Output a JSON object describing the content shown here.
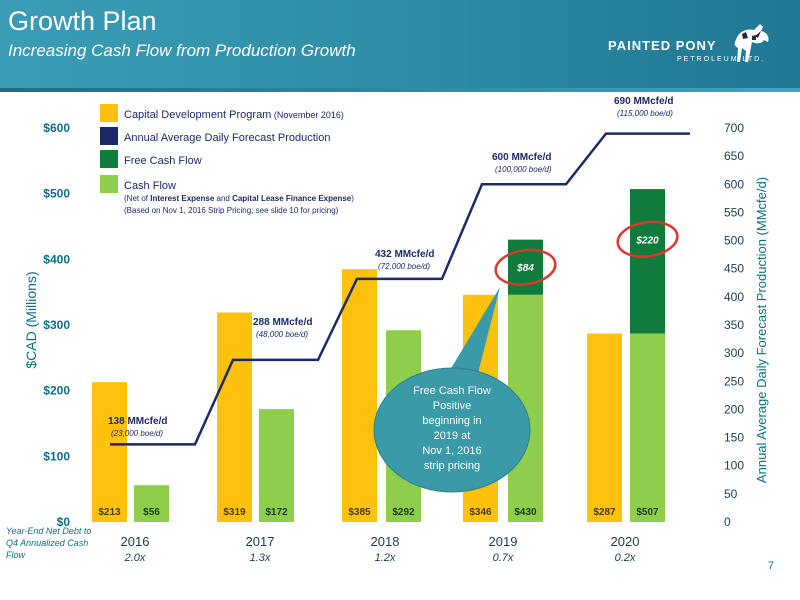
{
  "header": {
    "title": "Growth Plan",
    "subtitle": "Increasing Cash Flow from Production Growth"
  },
  "logo": {
    "name": "PAINTED PONY",
    "sub": "PETROLEUM LTD."
  },
  "footer": {
    "net_debt_label": "Year-End Net Debt to Q4 Annualized Cash Flow",
    "page_number": "7"
  },
  "colors": {
    "header": "#2f8fa9",
    "capital": "#fec20e",
    "production": "#1b2a68",
    "free_cash_flow": "#107b3b",
    "cash_flow": "#8fcd4c",
    "axis_text": "#0f6d8a",
    "callout": "#3a9aa8",
    "highlight_circle": "#e0362f"
  },
  "chart_data": {
    "type": "bar",
    "categories": [
      "2016",
      "2017",
      "2018",
      "2019",
      "2020"
    ],
    "y_left": {
      "label": "$CAD (Millions)",
      "range": [
        0,
        600
      ],
      "ticks": [
        "$0",
        "$100",
        "$200",
        "$300",
        "$400",
        "$500",
        "$600"
      ],
      "tick_values": [
        0,
        100,
        200,
        300,
        400,
        500,
        600
      ]
    },
    "y_right": {
      "label": "Annual Average Daily Forecast Production (MMcfe/d)",
      "range": [
        0,
        700
      ],
      "ticks": [
        "0",
        "50",
        "100",
        "150",
        "200",
        "250",
        "300",
        "350",
        "400",
        "450",
        "500",
        "550",
        "600",
        "650",
        "700"
      ],
      "tick_values": [
        0,
        50,
        100,
        150,
        200,
        250,
        300,
        350,
        400,
        450,
        500,
        550,
        600,
        650,
        700
      ]
    },
    "ratios": [
      "2.0x",
      "1.3x",
      "1.2x",
      "0.7x",
      "0.2x"
    ],
    "series": [
      {
        "name": "Capital Development Program",
        "values": [
          213,
          319,
          385,
          346,
          287
        ],
        "labels": [
          "$213",
          "$319",
          "$385",
          "$346",
          "$287"
        ]
      },
      {
        "name": "Cash Flow",
        "values": [
          56,
          172,
          292,
          430,
          507
        ],
        "labels": [
          "$56",
          "$172",
          "$292",
          "$430",
          "$507"
        ]
      },
      {
        "name": "Free Cash Flow",
        "values": [
          0,
          0,
          0,
          84,
          220
        ],
        "labels": [
          "",
          "",
          "",
          "$84",
          "$220"
        ]
      }
    ],
    "production": {
      "name": "Annual Average Daily Forecast Production",
      "values": [
        138,
        288,
        432,
        600,
        690
      ],
      "labels": [
        "138 MMcfe/d",
        "288 MMcfe/d",
        "432 MMcfe/d",
        "600 MMcfe/d",
        "690 MMcfe/d"
      ],
      "sublabels": [
        "(23,000 boe/d)",
        "(48,000 boe/d)",
        "(72,000 boe/d)",
        "(100,000 boe/d)",
        "(115,000 boe/d)"
      ]
    },
    "legend": {
      "placement": "top-left",
      "items": [
        {
          "label": "Capital Development Program",
          "suffix": "(November 2016)",
          "color": "#fec20e"
        },
        {
          "label": "Annual Average Daily Forecast Production",
          "suffix": "",
          "color": "#1b2a68"
        },
        {
          "label": "Free Cash Flow",
          "suffix": "",
          "color": "#107b3b"
        },
        {
          "label": "Cash Flow",
          "suffix": "",
          "color": "#8fcd4c"
        }
      ],
      "note_line1_a": "(Net of ",
      "note_line1_b": "Interest Expense",
      "note_line1_c": " and ",
      "note_line1_d": "Capital Lease Finance Expense",
      "note_line1_e": ")",
      "note_line2": "(Based on Nov 1, 2016 Strip Pricing; see slide 10 for pricing)"
    },
    "callout": {
      "lines": [
        "Free Cash Flow",
        "Positive",
        "beginning in",
        "2019 at",
        "Nov 1, 2016",
        "strip pricing"
      ]
    }
  }
}
